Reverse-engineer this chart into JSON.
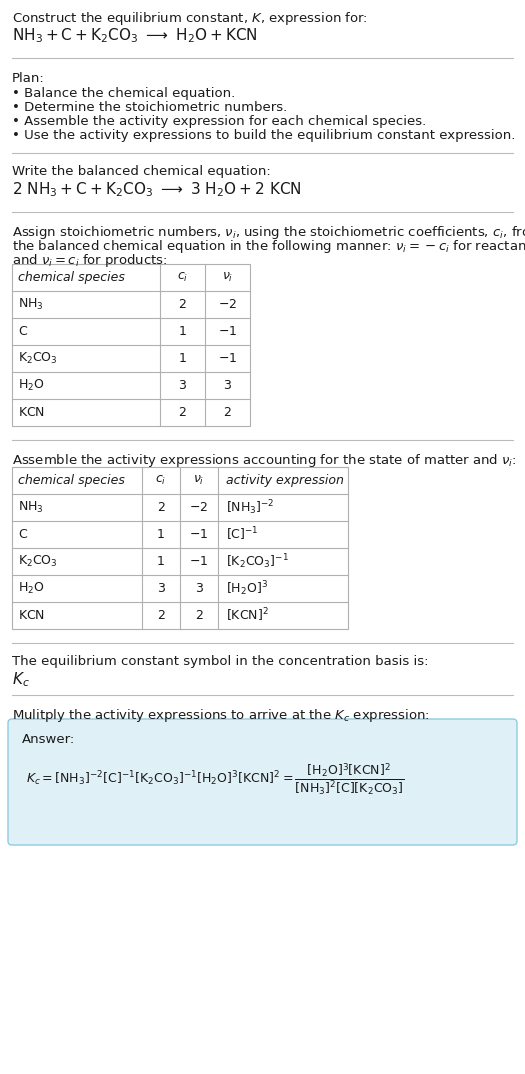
{
  "bg_color": "#ffffff",
  "text_color": "#1a1a1a",
  "table_border_color": "#b0b0b0",
  "answer_box_bg": "#dff0f7",
  "answer_box_border": "#90cce0",
  "title_line1": "Construct the equilibrium constant, $K$, expression for:",
  "title_line2_parts": [
    "NH",
    "3",
    " + C + K",
    "2",
    "CO",
    "3",
    "  ⟶  H",
    "2",
    "O + KCN"
  ],
  "separator_color": "#cccccc",
  "plan_header": "Plan:",
  "plan_items": [
    "• Balance the chemical equation.",
    "• Determine the stoichiometric numbers.",
    "• Assemble the activity expression for each chemical species.",
    "• Use the activity expressions to build the equilibrium constant expression."
  ],
  "balanced_header": "Write the balanced chemical equation:",
  "stoich_header_line1": "Assign stoichiometric numbers, $\\nu_i$, using the stoichiometric coefficients, $c_i$, from",
  "stoich_header_line2": "the balanced chemical equation in the following manner: $\\nu_i = -c_i$ for reactants",
  "stoich_header_line3": "and $\\nu_i = c_i$ for products:",
  "table1_headers": [
    "chemical species",
    "$c_i$",
    "$\\nu_i$"
  ],
  "table1_rows": [
    [
      "$\\mathrm{NH_3}$",
      "2",
      "$-2$"
    ],
    [
      "$\\mathrm{C}$",
      "1",
      "$-1$"
    ],
    [
      "$\\mathrm{K_2CO_3}$",
      "1",
      "$-1$"
    ],
    [
      "$\\mathrm{H_2O}$",
      "3",
      "3"
    ],
    [
      "$\\mathrm{KCN}$",
      "2",
      "2"
    ]
  ],
  "activity_header": "Assemble the activity expressions accounting for the state of matter and $\\nu_i$:",
  "table2_headers": [
    "chemical species",
    "$c_i$",
    "$\\nu_i$",
    "activity expression"
  ],
  "table2_rows": [
    [
      "$\\mathrm{NH_3}$",
      "2",
      "$-2$",
      "$[\\mathrm{NH_3}]^{-2}$"
    ],
    [
      "$\\mathrm{C}$",
      "1",
      "$-1$",
      "$[\\mathrm{C}]^{-1}$"
    ],
    [
      "$\\mathrm{K_2CO_3}$",
      "1",
      "$-1$",
      "$[\\mathrm{K_2CO_3}]^{-1}$"
    ],
    [
      "$\\mathrm{H_2O}$",
      "3",
      "3",
      "$[\\mathrm{H_2O}]^{3}$"
    ],
    [
      "$\\mathrm{KCN}$",
      "2",
      "2",
      "$[\\mathrm{KCN}]^{2}$"
    ]
  ],
  "kc_header": "The equilibrium constant symbol in the concentration basis is:",
  "kc_symbol": "$K_c$",
  "multiply_header": "Mulitply the activity expressions to arrive at the $K_c$ expression:",
  "answer_label": "Answer:"
}
